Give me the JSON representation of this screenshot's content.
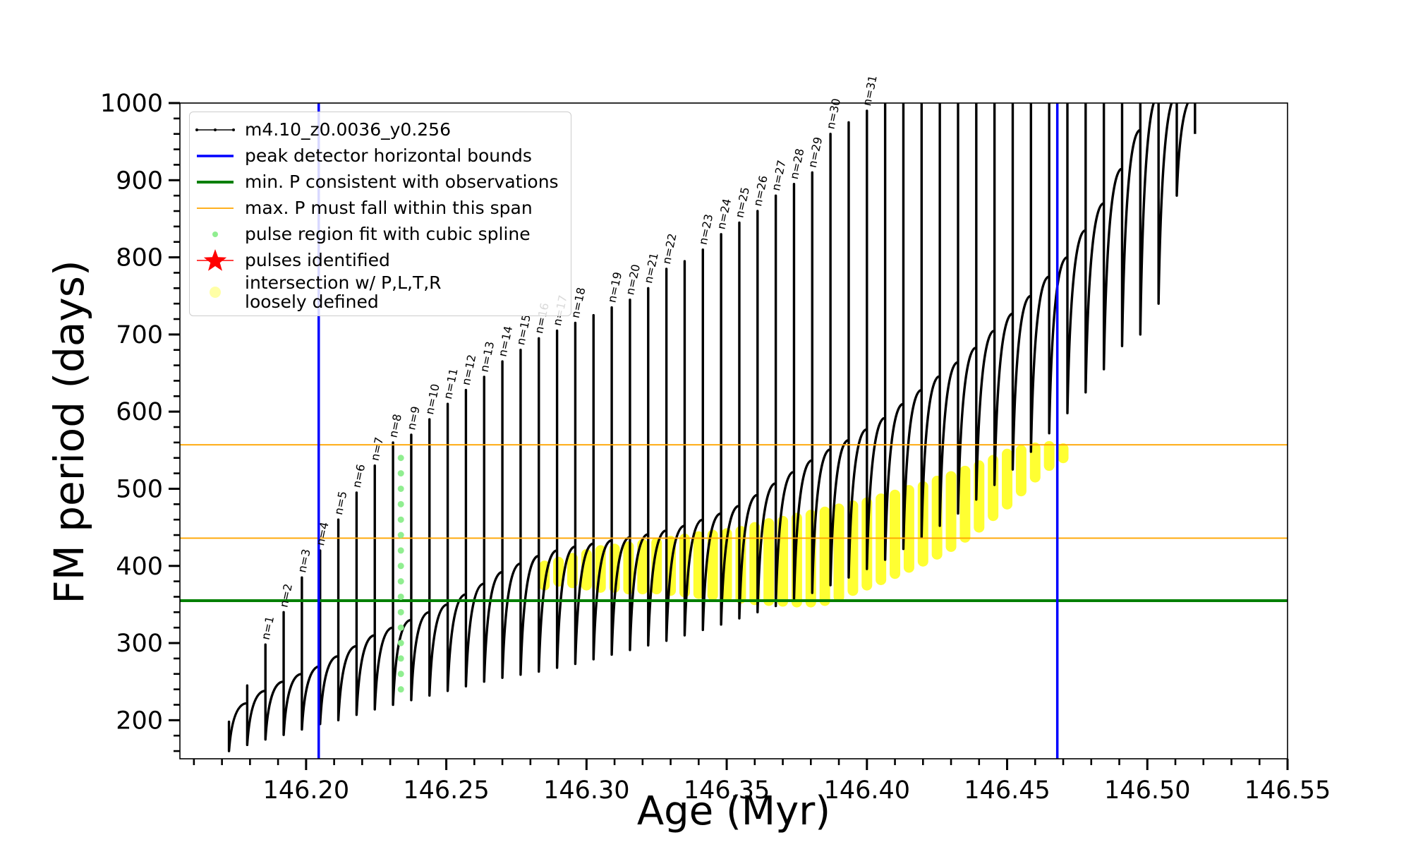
{
  "chart_data": {
    "type": "line",
    "xlabel": "Age (Myr)",
    "ylabel": "FM period (days)",
    "xlim": [
      146.155,
      146.55
    ],
    "ylim": [
      150,
      1000
    ],
    "xticks": [
      {
        "value": 146.2,
        "label": "146.20"
      },
      146.25,
      {
        "value": 146.3,
        "label": "146.30"
      },
      146.35,
      {
        "value": 146.4,
        "label": "146.40"
      },
      146.45,
      {
        "value": 146.5,
        "label": "146.50"
      },
      146.55
    ],
    "yticks": [
      200,
      300,
      400,
      500,
      600,
      700,
      800,
      900,
      1000
    ],
    "xminorticks": [
      146.16,
      146.17,
      146.18,
      146.19,
      146.2,
      146.21,
      146.22,
      146.23,
      146.24,
      146.25,
      146.26,
      146.27,
      146.28,
      146.29,
      146.3,
      146.31,
      146.32,
      146.33,
      146.34,
      146.35,
      146.36,
      146.37,
      146.38,
      146.39,
      146.4,
      146.41,
      146.42,
      146.43,
      146.44,
      146.45,
      146.46,
      146.47,
      146.48,
      146.49,
      146.5,
      146.51,
      146.52,
      146.53,
      146.54,
      146.55
    ],
    "yminorticks": [
      160,
      180,
      200,
      220,
      240,
      260,
      280,
      300,
      320,
      340,
      360,
      380,
      400,
      420,
      440,
      460,
      480,
      500,
      520,
      540,
      560,
      580,
      600,
      620,
      640,
      660,
      680,
      700,
      720,
      740,
      760,
      780,
      800,
      820,
      840,
      860,
      880,
      900,
      920,
      940,
      960,
      980,
      1000
    ],
    "grid": false,
    "legend": "upper left",
    "series": [
      {
        "name": "m4.10_z0.0036_y0.256",
        "kind": "pulses",
        "color": "#000000",
        "x": [
          146.1725,
          146.179,
          146.1855,
          146.192,
          146.1985,
          146.205,
          146.2115,
          146.218,
          146.2245,
          146.231,
          146.2375,
          146.244,
          146.2505,
          146.257,
          146.2635,
          146.27,
          146.2765,
          146.283,
          146.2895,
          146.296,
          146.3025,
          146.309,
          146.3155,
          146.322,
          146.3285,
          146.335,
          146.3415,
          146.348,
          146.3545,
          146.361,
          146.3675,
          146.374,
          146.3805,
          146.387,
          146.3935,
          146.4,
          146.4065,
          146.413,
          146.4195,
          146.426,
          146.4325,
          146.439,
          146.4455,
          146.452,
          146.4585,
          146.465,
          146.4715,
          146.478,
          146.4845,
          146.491,
          146.4975,
          146.504,
          146.5105,
          146.517
        ],
        "top": [
          195,
          222,
          238,
          250,
          260,
          270,
          283,
          296,
          310,
          320,
          330,
          340,
          350,
          363,
          377,
          392,
          403,
          413,
          420,
          425,
          429,
          433,
          437,
          441,
          446,
          452,
          460,
          468,
          478,
          492,
          507,
          522,
          537,
          551,
          563,
          577,
          592,
          610,
          628,
          646,
          664,
          683,
          705,
          727,
          750,
          775,
          800,
          835,
          870,
          915,
          965,
          1010,
          1010,
          1010
        ],
        "peak": [
          198,
          245,
          298,
          340,
          385,
          420,
          460,
          495,
          530,
          560,
          570,
          590,
          610,
          628,
          645,
          665,
          680,
          695,
          705,
          715,
          725,
          735,
          745,
          760,
          785,
          795,
          810,
          830,
          845,
          860,
          880,
          895,
          910,
          960,
          975,
          990,
          1010,
          1010,
          1010,
          1010,
          1010,
          1010,
          1010,
          1010,
          1010,
          1010,
          1010,
          1010,
          1010,
          1010,
          1010,
          1010,
          1010,
          1010
        ],
        "trough": [
          160,
          168,
          175,
          181,
          188,
          195,
          200,
          207,
          214,
          220,
          226,
          232,
          238,
          244,
          250,
          255,
          259,
          263,
          268,
          273,
          279,
          285,
          291,
          297,
          303,
          310,
          317,
          324,
          332,
          340,
          348,
          356,
          365,
          375,
          385,
          396,
          408,
          422,
          437,
          452,
          468,
          486,
          505,
          525,
          548,
          572,
          598,
          625,
          655,
          685,
          700,
          740,
          880,
          960
        ],
        "labels": [
          null,
          null,
          "n=1",
          "n=2",
          "n=3",
          "n=4",
          "n=5",
          "n=6",
          "n=7",
          "n=8",
          "n=9",
          "n=10",
          "n=11",
          "n=12",
          "n=13",
          "n=14",
          "n=15",
          "n=16",
          "n=17",
          "n=18",
          null,
          "n=19",
          "n=20",
          "n=21",
          "n=22",
          null,
          "n=23",
          "n=24",
          "n=25",
          "n=26",
          "n=27",
          "n=28",
          "n=29",
          "n=30",
          null,
          "n=31",
          null,
          null,
          null,
          null,
          null,
          null,
          null,
          null,
          null,
          null,
          null,
          null,
          null,
          null,
          null,
          null,
          null,
          null
        ]
      },
      {
        "name": "peak detector horizontal bounds",
        "kind": "vline",
        "color": "#0000ff",
        "x": [
          146.2045,
          146.4679
        ]
      },
      {
        "name": "min. P consistent with observations",
        "kind": "hline",
        "color": "#007f00",
        "y": [
          355
        ]
      },
      {
        "name": "max. P must fall within this span",
        "kind": "hline",
        "color": "#ffa500",
        "y": [
          436,
          557
        ]
      },
      {
        "name": "pulse region fit with cubic spline",
        "kind": "scatter",
        "color": "#90ee90",
        "x": [
          146.2338,
          146.2338,
          146.2338,
          146.2338,
          146.2338,
          146.2338,
          146.2338,
          146.2338,
          146.2338,
          146.2338,
          146.2338,
          146.2338,
          146.2338,
          146.2338,
          146.2338,
          146.2338
        ],
        "values": [
          240,
          260,
          280,
          300,
          320,
          340,
          360,
          380,
          400,
          420,
          440,
          460,
          480,
          500,
          520,
          540
        ]
      },
      {
        "name": "pulses identified",
        "kind": "star",
        "color": "#ff0000",
        "x": [],
        "values": []
      },
      {
        "name": "intersection w/ P,L,T,R\nloosely defined",
        "kind": "band",
        "color": "#ffff00",
        "x": [
          146.285,
          146.29,
          146.295,
          146.3,
          146.305,
          146.31,
          146.315,
          146.32,
          146.325,
          146.33,
          146.335,
          146.34,
          146.345,
          146.35,
          146.355,
          146.36,
          146.365,
          146.37,
          146.375,
          146.38,
          146.385,
          146.39,
          146.395,
          146.4,
          146.405,
          146.41,
          146.415,
          146.42,
          146.425,
          146.43,
          146.435,
          146.44,
          146.445,
          146.45,
          146.455,
          146.46,
          146.465,
          146.47
        ],
        "low": [
          375,
          380,
          378,
          375,
          372,
          372,
          370,
          370,
          370,
          368,
          366,
          364,
          362,
          360,
          358,
          356,
          355,
          354,
          353,
          353,
          355,
          360,
          368,
          375,
          382,
          390,
          398,
          406,
          415,
          425,
          437,
          450,
          465,
          480,
          497,
          515,
          530,
          540
        ],
        "high": [
          400,
          405,
          410,
          415,
          420,
          422,
          425,
          428,
          430,
          432,
          435,
          438,
          440,
          442,
          445,
          450,
          455,
          458,
          462,
          466,
          470,
          474,
          478,
          482,
          487,
          492,
          498,
          503,
          510,
          516,
          523,
          530,
          537,
          545,
          550,
          553,
          555,
          552
        ]
      }
    ]
  }
}
